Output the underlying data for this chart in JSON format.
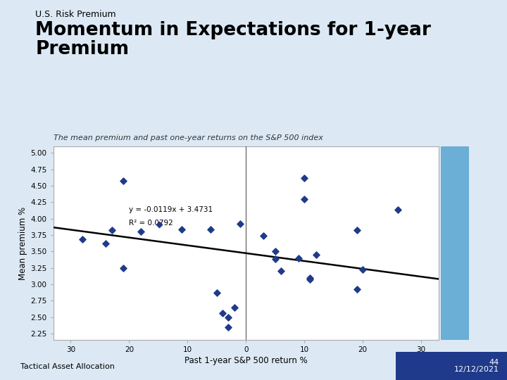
{
  "supertitle": "U.S. Risk Premium",
  "title": "Momentum in Expectations for 1-year\nPremium",
  "subtitle": "The mean premium and past one-year returns on the S&P 500 index",
  "xlabel": "Past 1-year S&P 500 return %",
  "ylabel": "Mean premium %",
  "equation": "y = -0.0119x + 3.4731",
  "r_squared": "R² = 0.0792",
  "scatter_color": "#1F3A8A",
  "line_color": "#000000",
  "bg_color": "#dce9f5",
  "plot_bg_color": "#ffffff",
  "footer_left": "Tactical Asset Allocation",
  "footer_right_line1": "44",
  "footer_right_line2": "12/12/2021",
  "xlim": [
    -33,
    33
  ],
  "ylim": [
    2.15,
    5.1
  ],
  "xticks": [
    -30,
    -20,
    -10,
    0,
    10,
    20,
    30
  ],
  "yticks": [
    2.25,
    2.5,
    2.75,
    3.0,
    3.25,
    3.5,
    3.75,
    4.0,
    4.25,
    4.5,
    4.75,
    5.0
  ],
  "scatter_x": [
    -28,
    -24,
    -23,
    -21,
    -21,
    -18,
    -11,
    -6,
    -5,
    -4,
    -3,
    -3,
    -2,
    -1,
    3,
    5,
    5,
    6,
    9,
    10,
    10,
    11,
    11,
    12,
    19,
    19,
    20,
    26
  ],
  "scatter_y": [
    3.68,
    3.62,
    3.82,
    4.57,
    3.25,
    3.8,
    3.83,
    3.83,
    2.87,
    2.56,
    2.5,
    2.35,
    2.65,
    3.92,
    3.74,
    3.5,
    3.38,
    3.2,
    3.4,
    4.62,
    4.3,
    3.1,
    3.07,
    3.45,
    3.82,
    2.92,
    3.22,
    4.13
  ],
  "slope": -0.0119,
  "intercept": 3.4731,
  "deco_color": "#6baed6",
  "footer_box_color": "#1F3A8A"
}
